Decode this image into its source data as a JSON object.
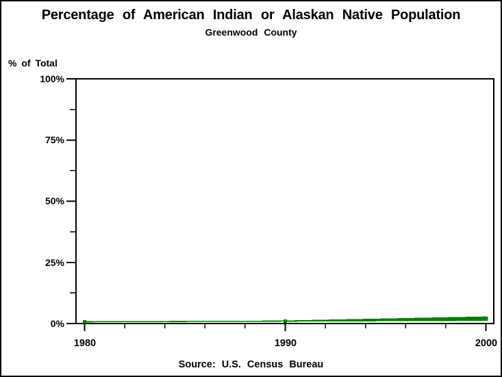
{
  "chart_data": {
    "type": "line",
    "title": "Percentage of American Indian or Alaskan Native Population",
    "subtitle": "Greenwood County",
    "ylabel": "% of Total",
    "footnote": "Source: U.S. Census Bureau",
    "x": [
      1980,
      1990,
      2000
    ],
    "values": [
      0.7,
      1.0,
      2.0
    ],
    "series_color": "#008000",
    "marker": "filled-square",
    "xlim": [
      1980,
      2000
    ],
    "ylim": [
      0,
      100
    ],
    "ytick_major": [
      0,
      25,
      50,
      75,
      100
    ],
    "ytick_minor": [
      12.5,
      37.5,
      62.5,
      87.5
    ],
    "ytick_labels": [
      "0%",
      "25%",
      "50%",
      "75%",
      "100%"
    ],
    "xtick_major": [
      1980,
      1990,
      2000
    ],
    "xtick_minor": [
      1982,
      1984,
      1986,
      1988,
      1992,
      1994,
      1996,
      1998
    ],
    "xtick_labels": [
      "1980",
      "1990",
      "2000"
    ],
    "grid": false,
    "legend": "none",
    "frame": true,
    "axis_color": "#000000",
    "background": "#ffffff"
  }
}
